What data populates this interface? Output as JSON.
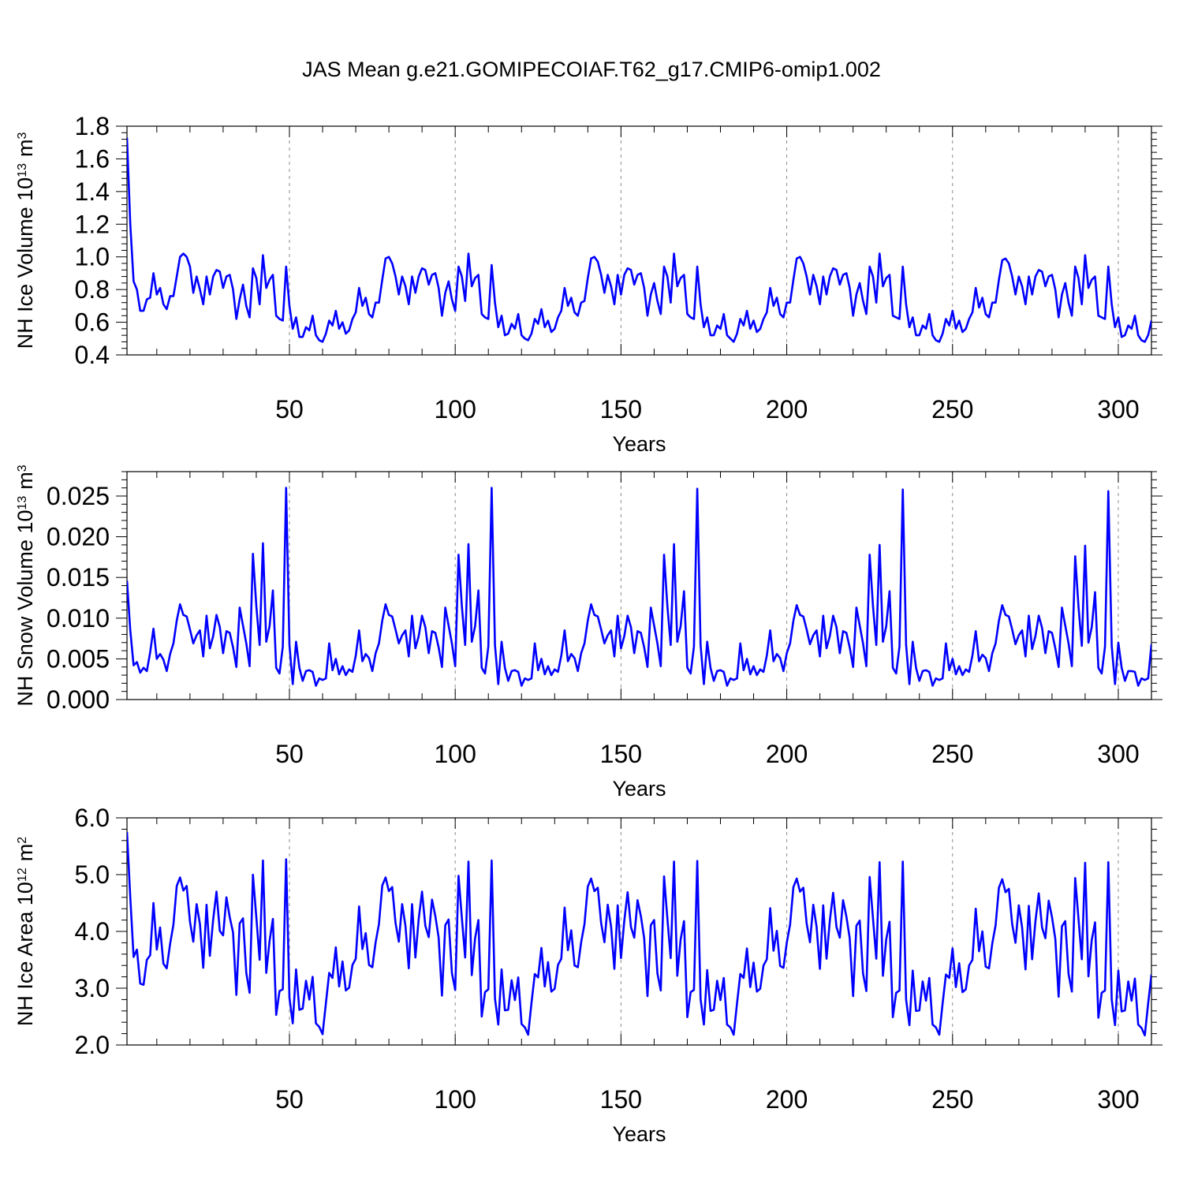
{
  "figure": {
    "title": "JAS Mean g.e21.GOMIPECOIAF.T62_g17.CMIP6-omip1.002",
    "line_color": "#0000ff"
  },
  "chart_data": [
    {
      "type": "line",
      "name": "nh-ice-volume",
      "title": "JAS Mean g.e21.GOMIPECOIAF.T62_g17.CMIP6-omip1.002",
      "xlabel": "Years",
      "ylabel": "NH Ice Volume 10",
      "ylabel_superscript": "13",
      "ylabel_unit": "m",
      "ylabel_unit_superscript": "3",
      "xlim": [
        1,
        310
      ],
      "ylim": [
        0.4,
        1.8
      ],
      "xticks": [
        50,
        100,
        150,
        200,
        250,
        300
      ],
      "xtick_labels": [
        "50",
        "100",
        "150",
        "200",
        "250",
        "300"
      ],
      "yticks": [
        0.4,
        0.6,
        0.8,
        1.0,
        1.2,
        1.4,
        1.6,
        1.8
      ],
      "ytick_labels": [
        "0.4",
        "0.6",
        "0.8",
        "1.0",
        "1.2",
        "1.4",
        "1.6",
        "1.8"
      ],
      "grid": "dashed vertical at x ticks",
      "x_start": 1,
      "values": [
        1.73,
        1.2,
        0.85,
        0.8,
        0.67,
        0.67,
        0.74,
        0.75,
        0.9,
        0.77,
        0.81,
        0.71,
        0.68,
        0.76,
        0.76,
        0.88,
        1.0,
        1.02,
        1.0,
        0.94,
        0.78,
        0.88,
        0.8,
        0.71,
        0.88,
        0.77,
        0.88,
        0.92,
        0.91,
        0.81,
        0.88,
        0.89,
        0.8,
        0.62,
        0.74,
        0.83,
        0.7,
        0.63,
        0.93,
        0.87,
        0.71,
        1.01,
        0.81,
        0.86,
        0.89,
        0.64,
        0.62,
        0.61,
        0.94,
        0.7,
        0.56,
        0.63,
        0.51,
        0.51,
        0.57,
        0.55,
        0.64,
        0.52,
        0.49,
        0.48,
        0.53,
        0.61,
        0.58,
        0.67,
        0.56,
        0.6,
        0.53,
        0.55,
        0.62,
        0.66,
        0.81,
        0.7,
        0.75,
        0.65,
        0.63,
        0.72,
        0.72,
        0.86,
        0.99,
        1.0,
        0.96,
        0.88,
        0.77,
        0.88,
        0.82,
        0.71,
        0.88,
        0.78,
        0.88,
        0.93,
        0.92,
        0.83,
        0.89,
        0.9,
        0.81,
        0.64,
        0.78,
        0.85,
        0.74,
        0.67,
        0.94,
        0.88,
        0.73,
        1.02,
        0.82,
        0.87,
        0.89,
        0.65,
        0.63,
        0.62,
        0.95,
        0.72,
        0.57,
        0.64,
        0.52,
        0.53,
        0.59,
        0.56,
        0.65,
        0.52,
        0.5,
        0.49,
        0.53,
        0.62,
        0.59,
        0.68,
        0.57,
        0.61,
        0.54,
        0.56,
        0.63,
        0.67,
        0.81,
        0.7,
        0.75,
        0.66,
        0.64,
        0.72,
        0.73,
        0.87,
        0.99,
        1.0,
        0.97,
        0.89,
        0.78,
        0.89,
        0.82,
        0.71,
        0.89,
        0.77,
        0.89,
        0.93,
        0.92,
        0.83,
        0.89,
        0.9,
        0.81,
        0.64,
        0.77,
        0.84,
        0.73,
        0.65,
        0.94,
        0.88,
        0.72,
        1.02,
        0.82,
        0.87,
        0.89,
        0.65,
        0.63,
        0.62,
        0.94,
        0.71,
        0.57,
        0.63,
        0.52,
        0.52,
        0.58,
        0.56,
        0.65,
        0.52,
        0.5,
        0.48,
        0.53,
        0.62,
        0.58,
        0.67,
        0.56,
        0.61,
        0.54,
        0.56,
        0.62,
        0.66,
        0.81,
        0.7,
        0.75,
        0.65,
        0.63,
        0.72,
        0.72,
        0.86,
        0.99,
        1.0,
        0.96,
        0.88,
        0.77,
        0.89,
        0.82,
        0.71,
        0.88,
        0.77,
        0.88,
        0.93,
        0.92,
        0.83,
        0.89,
        0.9,
        0.81,
        0.64,
        0.77,
        0.84,
        0.73,
        0.65,
        0.94,
        0.88,
        0.72,
        1.02,
        0.82,
        0.87,
        0.89,
        0.64,
        0.63,
        0.62,
        0.94,
        0.71,
        0.57,
        0.63,
        0.52,
        0.52,
        0.58,
        0.56,
        0.65,
        0.52,
        0.49,
        0.48,
        0.53,
        0.62,
        0.58,
        0.67,
        0.56,
        0.61,
        0.54,
        0.56,
        0.62,
        0.66,
        0.81,
        0.69,
        0.75,
        0.65,
        0.63,
        0.72,
        0.72,
        0.86,
        0.98,
        0.99,
        0.96,
        0.88,
        0.77,
        0.88,
        0.82,
        0.71,
        0.88,
        0.77,
        0.88,
        0.92,
        0.91,
        0.82,
        0.88,
        0.89,
        0.8,
        0.63,
        0.77,
        0.84,
        0.72,
        0.64,
        0.94,
        0.87,
        0.71,
        1.01,
        0.81,
        0.86,
        0.88,
        0.64,
        0.63,
        0.62,
        0.94,
        0.71,
        0.57,
        0.63,
        0.51,
        0.52,
        0.58,
        0.56,
        0.64,
        0.52,
        0.49,
        0.48,
        0.52,
        0.61
      ]
    },
    {
      "type": "line",
      "name": "nh-snow-volume",
      "xlabel": "Years",
      "ylabel": "NH Snow Volume 10",
      "ylabel_superscript": "13",
      "ylabel_unit": "m",
      "ylabel_unit_superscript": "3",
      "xlim": [
        1,
        310
      ],
      "ylim": [
        0.0,
        0.028
      ],
      "xticks": [
        50,
        100,
        150,
        200,
        250,
        300
      ],
      "xtick_labels": [
        "50",
        "100",
        "150",
        "200",
        "250",
        "300"
      ],
      "yticks": [
        0.0,
        0.005,
        0.01,
        0.015,
        0.02,
        0.025
      ],
      "ytick_labels": [
        "0.000",
        "0.005",
        "0.010",
        "0.015",
        "0.020",
        "0.025"
      ],
      "grid": "dashed vertical at x ticks",
      "x_start": 1,
      "values": [
        0.0146,
        0.0085,
        0.0042,
        0.0046,
        0.0033,
        0.0039,
        0.0035,
        0.0058,
        0.0087,
        0.005,
        0.0056,
        0.0049,
        0.0035,
        0.0056,
        0.0069,
        0.0097,
        0.0117,
        0.0104,
        0.0102,
        0.0086,
        0.0069,
        0.0079,
        0.0085,
        0.0053,
        0.0103,
        0.0063,
        0.0078,
        0.0104,
        0.0089,
        0.0057,
        0.0084,
        0.0082,
        0.0064,
        0.004,
        0.0113,
        0.0091,
        0.0069,
        0.0041,
        0.0179,
        0.0115,
        0.0067,
        0.0192,
        0.0071,
        0.009,
        0.0134,
        0.0039,
        0.0032,
        0.0065,
        0.026,
        0.0067,
        0.0019,
        0.0071,
        0.0039,
        0.0023,
        0.0035,
        0.0036,
        0.0034,
        0.0017,
        0.0026,
        0.0024,
        0.0026,
        0.0069,
        0.0036,
        0.005,
        0.0031,
        0.0041,
        0.003,
        0.0037,
        0.0034,
        0.0054,
        0.0085,
        0.0047,
        0.0056,
        0.0051,
        0.0035,
        0.0057,
        0.0069,
        0.0097,
        0.0117,
        0.0104,
        0.0102,
        0.0086,
        0.0069,
        0.0079,
        0.0085,
        0.0053,
        0.0103,
        0.0063,
        0.0078,
        0.0103,
        0.0089,
        0.0057,
        0.0084,
        0.0082,
        0.0064,
        0.004,
        0.0113,
        0.0091,
        0.0069,
        0.0041,
        0.0178,
        0.0115,
        0.0067,
        0.0191,
        0.0071,
        0.009,
        0.0134,
        0.0039,
        0.0032,
        0.0065,
        0.026,
        0.0067,
        0.0019,
        0.0071,
        0.0039,
        0.0023,
        0.0035,
        0.0036,
        0.0034,
        0.0017,
        0.0026,
        0.0024,
        0.0026,
        0.0069,
        0.0036,
        0.005,
        0.0031,
        0.0041,
        0.003,
        0.0037,
        0.0034,
        0.0054,
        0.0085,
        0.0047,
        0.0056,
        0.0051,
        0.0035,
        0.0057,
        0.0069,
        0.0097,
        0.0117,
        0.0104,
        0.0102,
        0.0086,
        0.0069,
        0.0079,
        0.0085,
        0.0053,
        0.0103,
        0.0063,
        0.0078,
        0.0103,
        0.0089,
        0.0057,
        0.0084,
        0.0082,
        0.0064,
        0.004,
        0.0113,
        0.0091,
        0.0069,
        0.0041,
        0.0178,
        0.0115,
        0.0067,
        0.0191,
        0.0071,
        0.009,
        0.0133,
        0.0039,
        0.0032,
        0.0065,
        0.0259,
        0.0067,
        0.0019,
        0.0071,
        0.0039,
        0.0023,
        0.0035,
        0.0036,
        0.0034,
        0.0017,
        0.0026,
        0.0024,
        0.0026,
        0.0069,
        0.0036,
        0.005,
        0.0031,
        0.0041,
        0.003,
        0.0037,
        0.0034,
        0.0054,
        0.0085,
        0.0047,
        0.0056,
        0.0051,
        0.0035,
        0.0057,
        0.0069,
        0.0097,
        0.0116,
        0.0104,
        0.0102,
        0.0086,
        0.0068,
        0.0079,
        0.0085,
        0.0053,
        0.0103,
        0.0063,
        0.0078,
        0.0103,
        0.0089,
        0.0057,
        0.0084,
        0.0082,
        0.0064,
        0.004,
        0.0113,
        0.0091,
        0.0069,
        0.0041,
        0.0178,
        0.0115,
        0.0067,
        0.019,
        0.0071,
        0.009,
        0.0133,
        0.0039,
        0.0032,
        0.0065,
        0.0258,
        0.0067,
        0.0019,
        0.0071,
        0.0039,
        0.0023,
        0.0035,
        0.0036,
        0.0034,
        0.0017,
        0.0026,
        0.0024,
        0.0026,
        0.0069,
        0.0036,
        0.005,
        0.0031,
        0.0041,
        0.003,
        0.0037,
        0.0034,
        0.0054,
        0.0084,
        0.0047,
        0.0055,
        0.0051,
        0.0035,
        0.0057,
        0.0069,
        0.0097,
        0.0116,
        0.0104,
        0.0102,
        0.0086,
        0.0068,
        0.0079,
        0.0085,
        0.0053,
        0.0103,
        0.0062,
        0.0078,
        0.0103,
        0.0088,
        0.0057,
        0.0084,
        0.0082,
        0.0063,
        0.004,
        0.0113,
        0.0091,
        0.0069,
        0.0041,
        0.0176,
        0.0114,
        0.0066,
        0.0189,
        0.007,
        0.0089,
        0.0132,
        0.0039,
        0.0032,
        0.0065,
        0.0256,
        0.0066,
        0.0019,
        0.007,
        0.0039,
        0.0023,
        0.0035,
        0.0035,
        0.0034,
        0.0017,
        0.0026,
        0.0024,
        0.0026,
        0.0068
      ]
    },
    {
      "type": "line",
      "name": "nh-ice-area",
      "xlabel": "Years",
      "ylabel": "NH Ice Area 10",
      "ylabel_superscript": "12",
      "ylabel_unit": "m",
      "ylabel_unit_superscript": "2",
      "xlim": [
        1,
        310
      ],
      "ylim": [
        2.0,
        6.0
      ],
      "xticks": [
        50,
        100,
        150,
        200,
        250,
        300
      ],
      "xtick_labels": [
        "50",
        "100",
        "150",
        "200",
        "250",
        "300"
      ],
      "yticks": [
        2.0,
        3.0,
        4.0,
        5.0,
        6.0
      ],
      "ytick_labels": [
        "2.0",
        "3.0",
        "4.0",
        "5.0",
        "6.0"
      ],
      "grid": "dashed vertical at x ticks",
      "x_start": 1,
      "values": [
        5.75,
        4.6,
        3.55,
        3.68,
        3.08,
        3.06,
        3.5,
        3.58,
        4.5,
        3.68,
        4.07,
        3.43,
        3.35,
        3.78,
        4.12,
        4.8,
        4.95,
        4.72,
        4.8,
        4.17,
        3.82,
        4.48,
        4.13,
        3.36,
        4.47,
        3.57,
        4.21,
        4.7,
        4.01,
        3.93,
        4.6,
        4.25,
        3.98,
        2.88,
        4.14,
        4.23,
        3.27,
        2.92,
        5.0,
        4.25,
        3.5,
        5.25,
        3.27,
        3.83,
        4.22,
        2.53,
        2.95,
        2.98,
        5.27,
        2.83,
        2.38,
        3.33,
        2.62,
        2.64,
        3.13,
        2.8,
        3.2,
        2.38,
        2.32,
        2.19,
        2.73,
        3.27,
        3.18,
        3.72,
        3.03,
        3.47,
        2.96,
        3.01,
        3.41,
        3.52,
        4.44,
        3.69,
        3.97,
        3.41,
        3.37,
        3.81,
        4.13,
        4.81,
        4.95,
        4.71,
        4.78,
        4.15,
        3.82,
        4.48,
        4.1,
        3.35,
        4.48,
        3.54,
        4.22,
        4.7,
        4.1,
        3.9,
        4.56,
        4.27,
        3.89,
        2.87,
        4.11,
        4.21,
        3.27,
        2.97,
        4.98,
        4.24,
        3.54,
        5.23,
        3.23,
        3.88,
        4.2,
        2.5,
        2.93,
        2.98,
        5.25,
        2.82,
        2.36,
        3.33,
        2.61,
        2.62,
        3.14,
        2.79,
        3.19,
        2.37,
        2.31,
        2.18,
        2.74,
        3.25,
        3.19,
        3.71,
        3.03,
        3.46,
        2.94,
        2.99,
        3.41,
        3.52,
        4.42,
        3.67,
        4.02,
        3.4,
        3.37,
        3.81,
        4.13,
        4.79,
        4.93,
        4.71,
        4.77,
        4.15,
        3.81,
        4.47,
        4.09,
        3.34,
        4.46,
        3.53,
        4.19,
        4.69,
        4.08,
        3.89,
        4.55,
        4.27,
        3.88,
        2.86,
        4.11,
        4.2,
        3.26,
        2.96,
        4.97,
        4.23,
        3.53,
        5.23,
        3.22,
        3.86,
        4.18,
        2.49,
        2.93,
        2.97,
        5.24,
        2.81,
        2.36,
        3.32,
        2.6,
        2.62,
        3.13,
        2.79,
        3.18,
        2.36,
        2.31,
        2.18,
        2.73,
        3.25,
        3.18,
        3.7,
        3.02,
        3.45,
        2.94,
        2.99,
        3.4,
        3.51,
        4.41,
        3.66,
        4.01,
        3.39,
        3.36,
        3.8,
        4.12,
        4.78,
        4.93,
        4.7,
        4.77,
        4.14,
        3.81,
        4.47,
        4.08,
        3.34,
        4.46,
        3.52,
        4.19,
        4.68,
        4.08,
        3.89,
        4.55,
        4.26,
        3.88,
        2.86,
        4.1,
        4.19,
        3.26,
        2.95,
        4.96,
        4.23,
        3.52,
        5.22,
        3.22,
        3.86,
        4.17,
        2.49,
        2.92,
        2.96,
        5.23,
        2.8,
        2.35,
        3.31,
        2.6,
        2.61,
        3.12,
        2.78,
        3.18,
        2.36,
        2.31,
        2.18,
        2.73,
        3.24,
        3.18,
        3.7,
        3.02,
        3.44,
        2.93,
        2.98,
        3.4,
        3.5,
        4.4,
        3.65,
        4.0,
        3.38,
        3.35,
        3.79,
        4.11,
        4.77,
        4.92,
        4.69,
        4.75,
        4.13,
        3.8,
        4.46,
        4.07,
        3.33,
        4.45,
        3.51,
        4.18,
        4.67,
        4.07,
        3.88,
        4.54,
        4.25,
        3.87,
        2.85,
        4.09,
        4.18,
        3.25,
        2.94,
        4.94,
        4.22,
        3.51,
        5.21,
        3.21,
        3.85,
        4.16,
        2.48,
        2.92,
        2.96,
        5.22,
        2.8,
        2.35,
        3.31,
        2.59,
        2.61,
        3.12,
        2.78,
        3.17,
        2.36,
        2.3,
        2.17,
        2.73,
        3.24
      ]
    }
  ]
}
